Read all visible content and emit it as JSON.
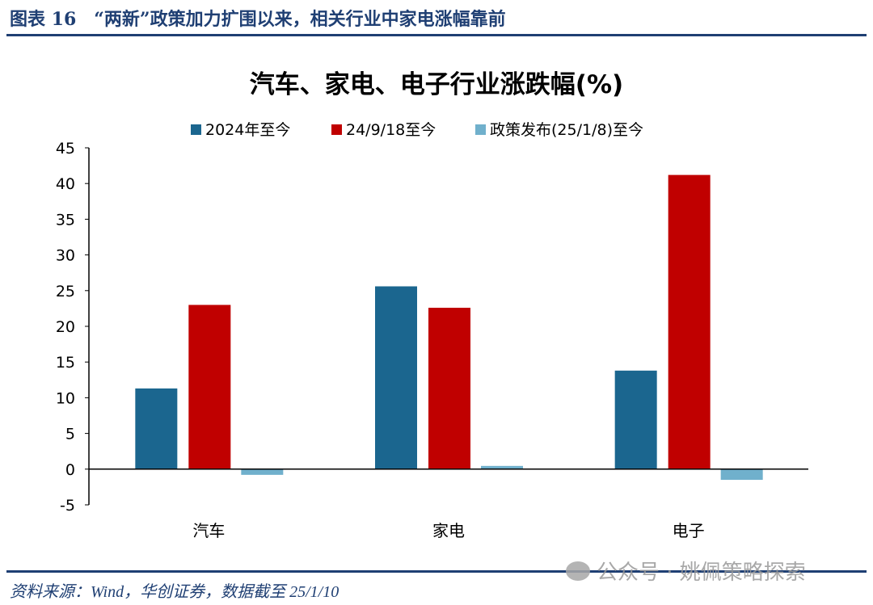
{
  "figure_label": "图表 16　“两新”政策加力扩围以来，相关行业中家电涨幅靠前",
  "source": "资料来源：Wind，华创证券，数据截至 25/1/10",
  "watermark": "公众号 · 姚佩策略探索",
  "chart_data": {
    "type": "bar",
    "title": "汽车、家电、电子行业涨跌幅(%)",
    "categories": [
      "汽车",
      "家电",
      "电子"
    ],
    "series": [
      {
        "name": "2024年至今",
        "color": "#1b668f",
        "values": [
          11.3,
          25.6,
          13.8
        ]
      },
      {
        "name": "24/9/18至今",
        "color": "#c00000",
        "values": [
          23.0,
          22.6,
          41.2
        ]
      },
      {
        "name": "政策发布(25/1/8)至今",
        "color": "#70b0cc",
        "values": [
          -0.8,
          0.45,
          -1.5
        ]
      }
    ],
    "ylim": [
      -5,
      45
    ],
    "yticks": [
      -5,
      0,
      5,
      10,
      15,
      20,
      25,
      30,
      35,
      40,
      45
    ],
    "legend": "top",
    "grid": false
  }
}
